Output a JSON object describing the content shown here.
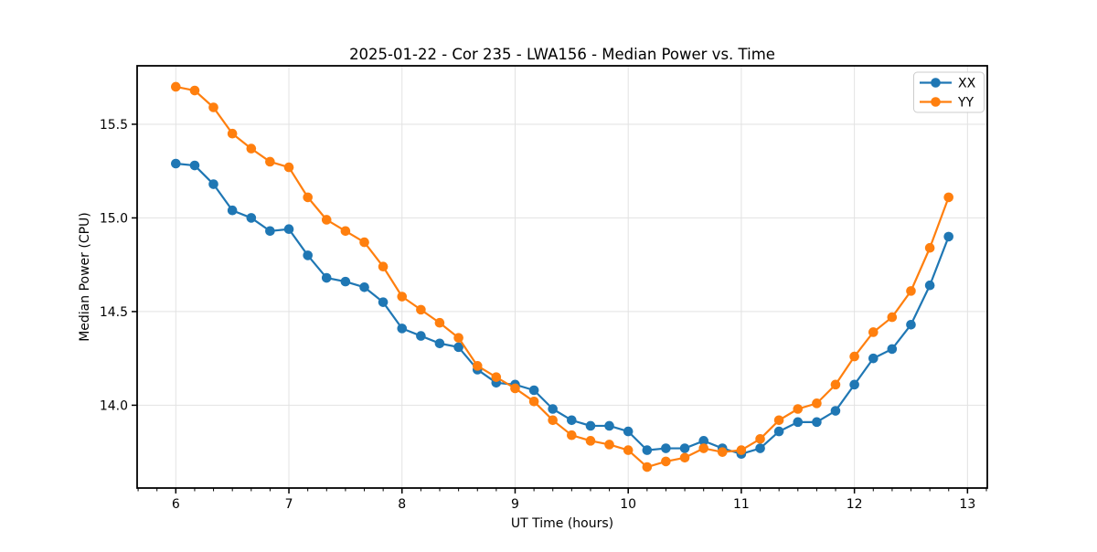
{
  "chart_data": {
    "type": "line",
    "title": "2025-01-22 - Cor 235 - LWA156 - Median Power vs. Time",
    "xlabel": "UT Time (hours)",
    "ylabel": "Median Power (CPU)",
    "xlim": [
      5.658,
      13.175
    ],
    "ylim": [
      13.558,
      15.812
    ],
    "xticks": [
      6,
      7,
      8,
      9,
      10,
      11,
      12,
      13
    ],
    "xtick_labels": [
      "6",
      "7",
      "8",
      "9",
      "10",
      "11",
      "12",
      "13"
    ],
    "yticks": [
      14.0,
      14.5,
      15.0,
      15.5
    ],
    "ytick_labels": [
      "14.0",
      "14.5",
      "15.0",
      "15.5"
    ],
    "x_minor_tick_step": 0.16667,
    "grid": true,
    "legend_position": "upper right",
    "x": [
      6.0,
      6.167,
      6.333,
      6.5,
      6.667,
      6.833,
      7.0,
      7.167,
      7.333,
      7.5,
      7.667,
      7.833,
      8.0,
      8.167,
      8.333,
      8.5,
      8.667,
      8.833,
      9.0,
      9.167,
      9.333,
      9.5,
      9.667,
      9.833,
      10.0,
      10.167,
      10.333,
      10.5,
      10.667,
      10.833,
      11.0,
      11.167,
      11.333,
      11.5,
      11.667,
      11.833,
      12.0,
      12.167,
      12.333,
      12.5,
      12.667,
      12.833
    ],
    "series": [
      {
        "name": "XX",
        "color": "#1f77b4",
        "values": [
          15.29,
          15.28,
          15.18,
          15.04,
          15.0,
          14.93,
          14.94,
          14.8,
          14.68,
          14.66,
          14.63,
          14.55,
          14.41,
          14.37,
          14.33,
          14.31,
          14.19,
          14.12,
          14.11,
          14.08,
          13.98,
          13.92,
          13.89,
          13.89,
          13.86,
          13.76,
          13.77,
          13.77,
          13.81,
          13.77,
          13.74,
          13.77,
          13.86,
          13.91,
          13.91,
          13.97,
          14.11,
          14.25,
          14.3,
          14.43,
          14.64,
          14.9
        ]
      },
      {
        "name": "YY",
        "color": "#ff7f0e",
        "values": [
          15.7,
          15.68,
          15.59,
          15.45,
          15.37,
          15.3,
          15.27,
          15.11,
          14.99,
          14.93,
          14.87,
          14.74,
          14.58,
          14.51,
          14.44,
          14.36,
          14.21,
          14.15,
          14.09,
          14.02,
          13.92,
          13.84,
          13.81,
          13.79,
          13.76,
          13.67,
          13.7,
          13.72,
          13.77,
          13.75,
          13.76,
          13.82,
          13.92,
          13.98,
          14.01,
          14.11,
          14.26,
          14.39,
          14.47,
          14.61,
          14.84,
          15.11
        ]
      }
    ],
    "colors": {
      "frame": "#000000",
      "grid": "#e2e2e2",
      "legend_border": "#cccccc",
      "background": "#ffffff"
    }
  }
}
